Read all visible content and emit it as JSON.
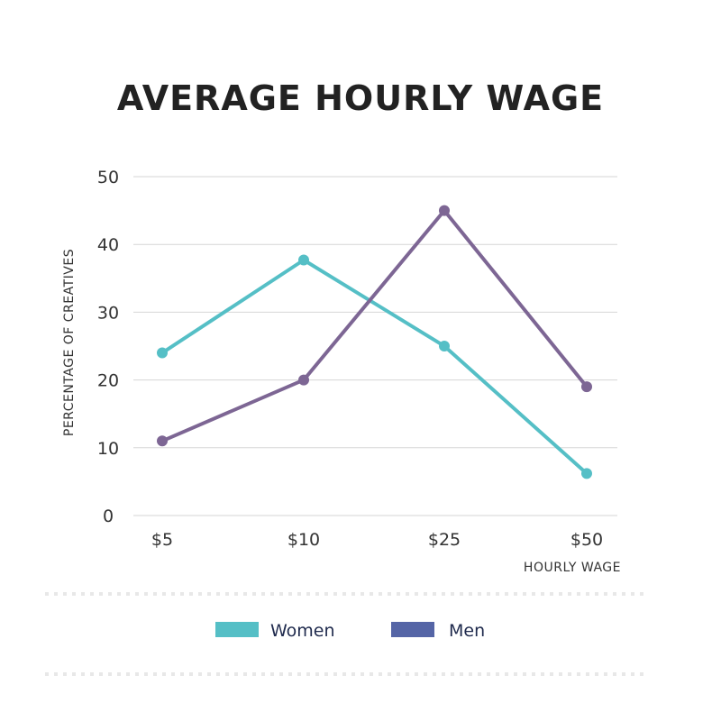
{
  "chart_data": {
    "type": "line",
    "title": "AVERAGE HOURLY WAGE",
    "xlabel": "HOURLY WAGE",
    "ylabel": "PERCENTAGE OF CREATIVES",
    "categories": [
      "$5",
      "$10",
      "$25",
      "$50"
    ],
    "ylim": [
      0,
      50
    ],
    "yticks": [
      0,
      10,
      20,
      30,
      40,
      50
    ],
    "grid": true,
    "legend_position": "bottom",
    "series": [
      {
        "name": "Women",
        "values": [
          24,
          37.7,
          25,
          6.2
        ],
        "color": "#55bfc6",
        "legend_color": "#55bfc6"
      },
      {
        "name": "Men",
        "values": [
          11,
          20,
          45,
          19
        ],
        "color": "#7d6694",
        "legend_color": "#5565a6"
      }
    ]
  }
}
